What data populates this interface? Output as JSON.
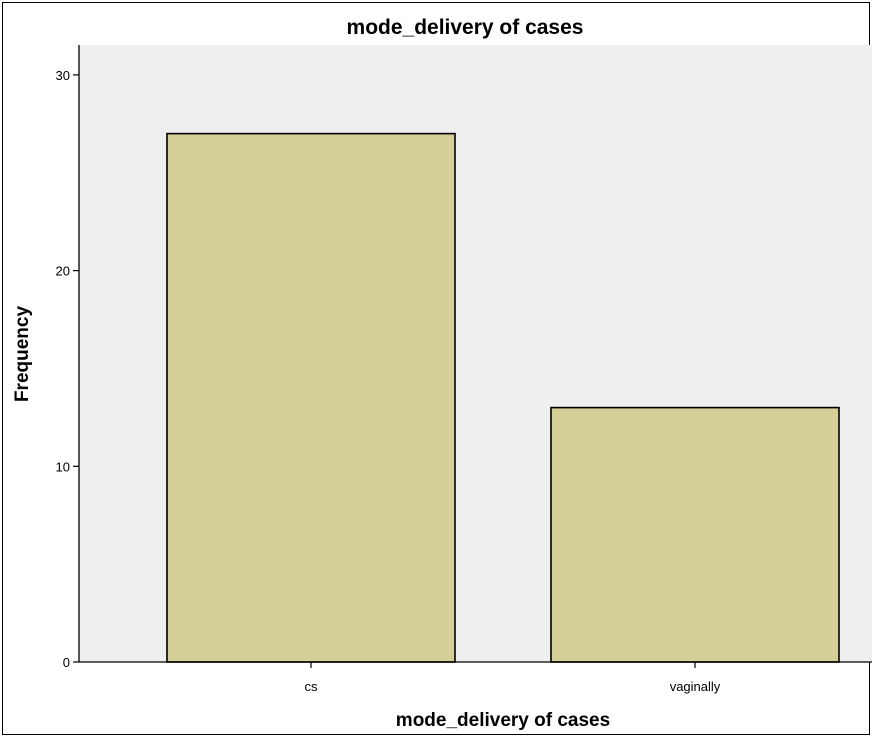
{
  "chart_data": {
    "type": "bar",
    "title": "mode_delivery of cases",
    "xlabel": "mode_delivery of cases",
    "ylabel": "Frequency",
    "categories": [
      "cs",
      "vaginally"
    ],
    "values": [
      27,
      13
    ],
    "ylim": [
      0,
      30
    ],
    "yticks": [
      "0",
      "10",
      "20",
      "30"
    ],
    "grid": false,
    "colors": {
      "plot_background": "#efefef",
      "bar_fill": "#d4cf96",
      "bar_stroke": "#000000"
    }
  }
}
